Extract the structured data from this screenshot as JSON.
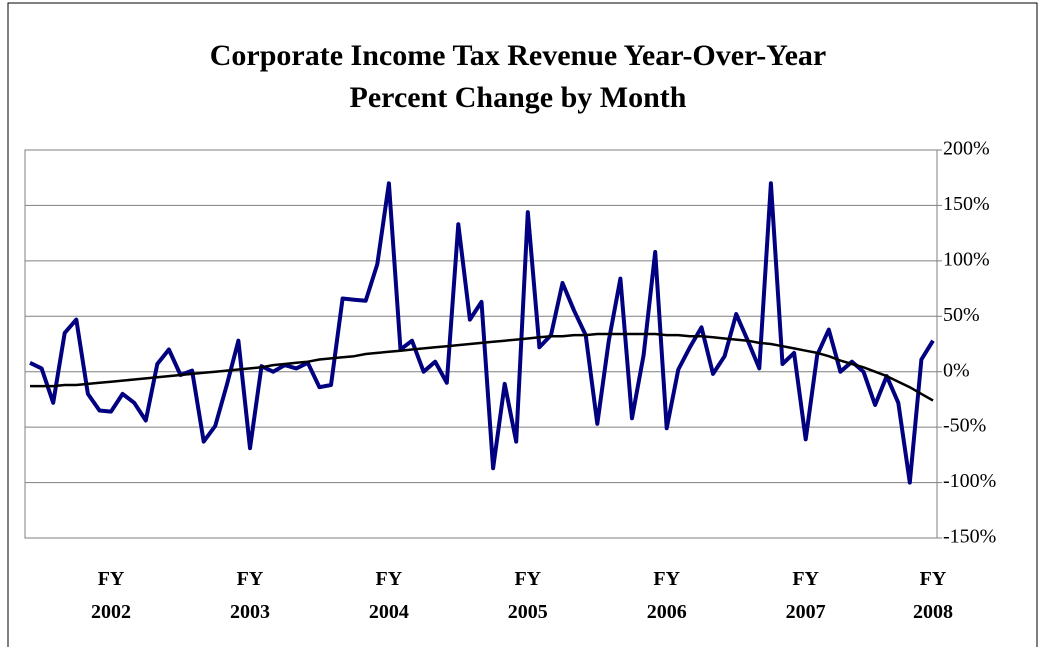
{
  "chart_data": {
    "type": "line",
    "title": [
      "Corporate Income Tax Revenue Year-Over-Year",
      "Percent Change by Month"
    ],
    "categories": [
      null,
      null,
      null,
      null,
      null,
      null,
      null,
      "FY 2002",
      null,
      null,
      null,
      null,
      null,
      null,
      null,
      null,
      null,
      null,
      null,
      "FY 2003",
      null,
      null,
      null,
      null,
      null,
      null,
      null,
      null,
      null,
      null,
      null,
      "FY 2004",
      null,
      null,
      null,
      null,
      null,
      null,
      null,
      null,
      null,
      null,
      null,
      "FY 2005",
      null,
      null,
      null,
      null,
      null,
      null,
      null,
      null,
      null,
      null,
      null,
      "FY 2006",
      null,
      null,
      null,
      null,
      null,
      null,
      null,
      null,
      null,
      null,
      null,
      "FY 2007",
      null,
      null,
      null,
      null,
      null,
      null,
      null,
      null,
      null,
      null,
      "FY 2008"
    ],
    "series": [
      {
        "color": "#000080",
        "values": [
          8,
          3,
          -28,
          35,
          47,
          -20,
          -35,
          -36,
          -20,
          -28,
          -44,
          7,
          20,
          -3,
          1,
          -63,
          -49,
          -12,
          28,
          -69,
          5,
          0,
          6,
          3,
          8,
          -14,
          -12,
          66,
          65,
          64,
          97,
          170,
          20,
          28,
          0,
          9,
          -10,
          133,
          47,
          63,
          -87,
          -11,
          -63,
          144,
          22,
          33,
          80,
          55,
          33,
          -47,
          28,
          84,
          -42,
          15,
          108,
          -51,
          2,
          22,
          40,
          -2,
          14,
          52,
          28,
          3,
          170,
          7,
          17,
          -61,
          15,
          38,
          0,
          9,
          0,
          -30,
          -4,
          -28,
          -100,
          11,
          28
        ]
      },
      {
        "color": "#000000",
        "values": [
          -13,
          -13,
          -13,
          -12,
          -12,
          -11,
          -10,
          -9,
          -8,
          -7,
          -6,
          -5,
          -4,
          -3,
          -2,
          -1,
          0,
          1,
          2,
          3,
          4,
          6,
          7,
          8,
          9,
          11,
          12,
          13,
          14,
          16,
          17,
          18,
          19,
          20,
          21,
          22,
          23,
          24,
          25,
          26,
          27,
          28,
          29,
          30,
          31,
          32,
          32,
          33,
          33,
          34,
          34,
          34,
          34,
          34,
          34,
          33,
          33,
          32,
          32,
          31,
          30,
          29,
          28,
          26,
          25,
          23,
          21,
          19,
          17,
          14,
          10,
          7,
          4,
          0,
          -4,
          -9,
          -14,
          -20,
          -26
        ]
      }
    ],
    "ylim": [
      -150,
      200
    ],
    "yticks": [
      {
        "value": -150,
        "label": "-150%"
      },
      {
        "value": -100,
        "label": "-100%"
      },
      {
        "value": -50,
        "label": "-50%"
      },
      {
        "value": 0,
        "label": "0%"
      },
      {
        "value": 50,
        "label": "50%"
      },
      {
        "value": 100,
        "label": "100%"
      },
      {
        "value": 150,
        "label": "150%"
      },
      {
        "value": 200,
        "label": "200%"
      }
    ],
    "grid": true
  }
}
